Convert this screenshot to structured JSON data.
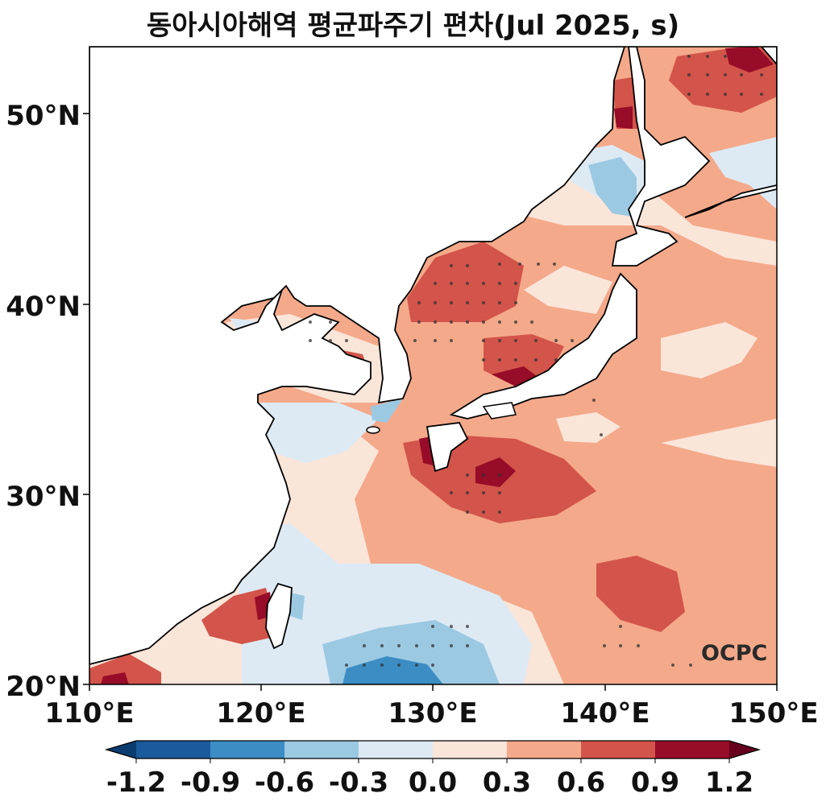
{
  "title": "동아시아해역 평균파주기 편차(Jul 2025, s)",
  "map": {
    "lon_range": [
      110,
      150
    ],
    "lat_range": [
      20,
      53.5
    ],
    "lon_ticks": [
      "110°E",
      "120°E",
      "130°E",
      "140°E",
      "150°E"
    ],
    "lat_ticks": [
      "20°N",
      "30°N",
      "40°N",
      "50°N"
    ]
  },
  "colorbar": {
    "labels": [
      "-1.2",
      "-0.9",
      "-0.6",
      "-0.3",
      "0.0",
      "0.3",
      "0.6",
      "0.9",
      "1.2"
    ],
    "colors": [
      "#0b3c6f",
      "#1b5a9c",
      "#3b8dc4",
      "#9cc9e2",
      "#ddeaf4",
      "#fae5d9",
      "#f4a98a",
      "#d3544a",
      "#970c28",
      "#67001f"
    ]
  },
  "logo": "OCPC"
}
